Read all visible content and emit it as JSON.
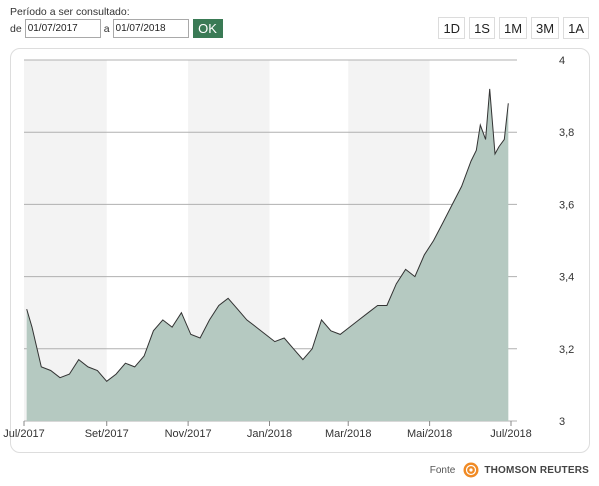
{
  "period": {
    "label": "Período a ser consultado:",
    "from_label": "de",
    "from_value": "01/07/2017",
    "to_label": "a",
    "to_value": "01/07/2018",
    "ok_label": "OK"
  },
  "range_buttons": [
    "1D",
    "1S",
    "1M",
    "3M",
    "1A"
  ],
  "source": {
    "label": "Fonte",
    "provider": "THOMSON REUTERS",
    "logo_icon": "thomson-reuters-logo-icon"
  },
  "colors": {
    "accent": "#3a7a55",
    "area_fill": "#b5c9c1",
    "line": "#333333",
    "band": "#f3f3f3",
    "grid": "#b0b0b0"
  },
  "chart_data": {
    "type": "area",
    "title": "",
    "xlabel": "",
    "ylabel": "",
    "ylim": [
      3,
      4
    ],
    "yticks": [
      "4",
      "3,8",
      "3,6",
      "3,4",
      "3,2",
      "3"
    ],
    "xticks": [
      "Jul/2017",
      "Set/2017",
      "Nov/2017",
      "Jan/2018",
      "Mar/2018",
      "Mai/2018",
      "Jul/2018"
    ],
    "grid": true,
    "series": [
      {
        "x": [
          "2017-07-03",
          "2017-07-07",
          "2017-07-14",
          "2017-07-21",
          "2017-07-28",
          "2017-08-04",
          "2017-08-11",
          "2017-08-18",
          "2017-08-25",
          "2017-09-01",
          "2017-09-08",
          "2017-09-15",
          "2017-09-22",
          "2017-09-29",
          "2017-10-06",
          "2017-10-13",
          "2017-10-20",
          "2017-10-27",
          "2017-11-03",
          "2017-11-10",
          "2017-11-17",
          "2017-11-24",
          "2017-12-01",
          "2017-12-08",
          "2017-12-15",
          "2017-12-22",
          "2017-12-29",
          "2018-01-05",
          "2018-01-12",
          "2018-01-19",
          "2018-01-26",
          "2018-02-02",
          "2018-02-09",
          "2018-02-16",
          "2018-02-23",
          "2018-03-02",
          "2018-03-09",
          "2018-03-16",
          "2018-03-23",
          "2018-03-30",
          "2018-04-06",
          "2018-04-13",
          "2018-04-20",
          "2018-04-27",
          "2018-05-04",
          "2018-05-11",
          "2018-05-18",
          "2018-05-25",
          "2018-06-01",
          "2018-06-05",
          "2018-06-08",
          "2018-06-12",
          "2018-06-15",
          "2018-06-19",
          "2018-06-22",
          "2018-06-26",
          "2018-06-29"
        ],
        "values": [
          3.31,
          3.26,
          3.15,
          3.14,
          3.12,
          3.13,
          3.17,
          3.15,
          3.14,
          3.11,
          3.13,
          3.16,
          3.15,
          3.18,
          3.25,
          3.28,
          3.26,
          3.3,
          3.24,
          3.23,
          3.28,
          3.32,
          3.34,
          3.31,
          3.28,
          3.26,
          3.24,
          3.22,
          3.23,
          3.2,
          3.17,
          3.2,
          3.28,
          3.25,
          3.24,
          3.26,
          3.28,
          3.3,
          3.32,
          3.32,
          3.38,
          3.42,
          3.4,
          3.46,
          3.5,
          3.55,
          3.6,
          3.65,
          3.72,
          3.75,
          3.82,
          3.78,
          3.92,
          3.74,
          3.76,
          3.78,
          3.88
        ]
      }
    ]
  }
}
